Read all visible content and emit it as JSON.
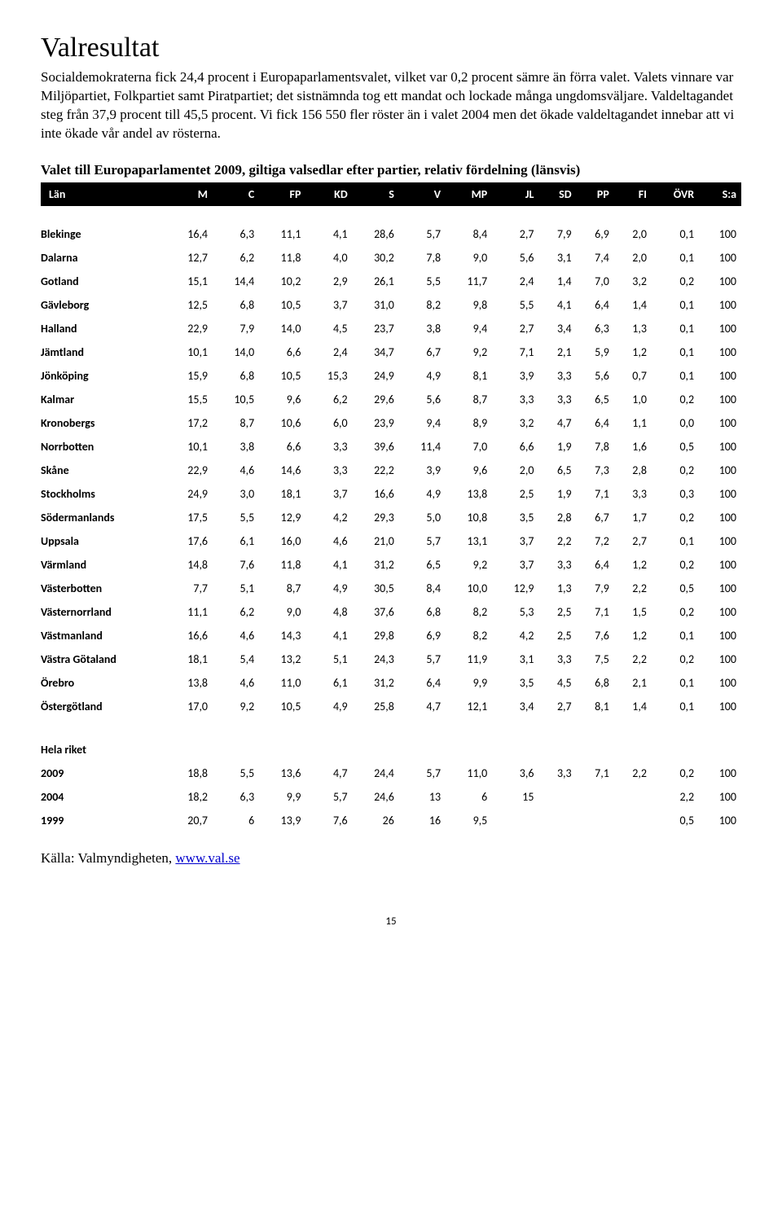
{
  "title": "Valresultat",
  "body": "Socialdemokraterna fick 24,4 procent i Europaparlamentsvalet, vilket var 0,2 procent sämre än förra valet. Valets vinnare var Miljöpartiet, Folkpartiet samt Piratpartiet; det sistnämnda tog ett mandat och lockade många ungdomsväljare. Valdeltagandet steg från 37,9 procent till 45,5 procent. Vi fick 156 550 fler röster än i valet 2004 men det ökade valdeltagandet innebar att vi inte ökade vår andel av rösterna.",
  "caption": "Valet till Europaparlamentet 2009, giltiga valsedlar efter partier, relativ fördelning (länsvis)",
  "table": {
    "columns": [
      "Län",
      "M",
      "C",
      "FP",
      "KD",
      "S",
      "V",
      "MP",
      "JL",
      "SD",
      "PP",
      "FI",
      "ÖVR",
      "S:a"
    ],
    "rows": [
      [
        "Blekinge",
        "16,4",
        "6,3",
        "11,1",
        "4,1",
        "28,6",
        "5,7",
        "8,4",
        "2,7",
        "7,9",
        "6,9",
        "2,0",
        "0,1",
        "100"
      ],
      [
        "Dalarna",
        "12,7",
        "6,2",
        "11,8",
        "4,0",
        "30,2",
        "7,8",
        "9,0",
        "5,6",
        "3,1",
        "7,4",
        "2,0",
        "0,1",
        "100"
      ],
      [
        "Gotland",
        "15,1",
        "14,4",
        "10,2",
        "2,9",
        "26,1",
        "5,5",
        "11,7",
        "2,4",
        "1,4",
        "7,0",
        "3,2",
        "0,2",
        "100"
      ],
      [
        "Gävleborg",
        "12,5",
        "6,8",
        "10,5",
        "3,7",
        "31,0",
        "8,2",
        "9,8",
        "5,5",
        "4,1",
        "6,4",
        "1,4",
        "0,1",
        "100"
      ],
      [
        "Halland",
        "22,9",
        "7,9",
        "14,0",
        "4,5",
        "23,7",
        "3,8",
        "9,4",
        "2,7",
        "3,4",
        "6,3",
        "1,3",
        "0,1",
        "100"
      ],
      [
        "Jämtland",
        "10,1",
        "14,0",
        "6,6",
        "2,4",
        "34,7",
        "6,7",
        "9,2",
        "7,1",
        "2,1",
        "5,9",
        "1,2",
        "0,1",
        "100"
      ],
      [
        "Jönköping",
        "15,9",
        "6,8",
        "10,5",
        "15,3",
        "24,9",
        "4,9",
        "8,1",
        "3,9",
        "3,3",
        "5,6",
        "0,7",
        "0,1",
        "100"
      ],
      [
        "Kalmar",
        "15,5",
        "10,5",
        "9,6",
        "6,2",
        "29,6",
        "5,6",
        "8,7",
        "3,3",
        "3,3",
        "6,5",
        "1,0",
        "0,2",
        "100"
      ],
      [
        "Kronobergs",
        "17,2",
        "8,7",
        "10,6",
        "6,0",
        "23,9",
        "9,4",
        "8,9",
        "3,2",
        "4,7",
        "6,4",
        "1,1",
        "0,0",
        "100"
      ],
      [
        "Norrbotten",
        "10,1",
        "3,8",
        "6,6",
        "3,3",
        "39,6",
        "11,4",
        "7,0",
        "6,6",
        "1,9",
        "7,8",
        "1,6",
        "0,5",
        "100"
      ],
      [
        "Skåne",
        "22,9",
        "4,6",
        "14,6",
        "3,3",
        "22,2",
        "3,9",
        "9,6",
        "2,0",
        "6,5",
        "7,3",
        "2,8",
        "0,2",
        "100"
      ],
      [
        "Stockholms",
        "24,9",
        "3,0",
        "18,1",
        "3,7",
        "16,6",
        "4,9",
        "13,8",
        "2,5",
        "1,9",
        "7,1",
        "3,3",
        "0,3",
        "100"
      ],
      [
        "Södermanlands",
        "17,5",
        "5,5",
        "12,9",
        "4,2",
        "29,3",
        "5,0",
        "10,8",
        "3,5",
        "2,8",
        "6,7",
        "1,7",
        "0,2",
        "100"
      ],
      [
        "Uppsala",
        "17,6",
        "6,1",
        "16,0",
        "4,6",
        "21,0",
        "5,7",
        "13,1",
        "3,7",
        "2,2",
        "7,2",
        "2,7",
        "0,1",
        "100"
      ],
      [
        "Värmland",
        "14,8",
        "7,6",
        "11,8",
        "4,1",
        "31,2",
        "6,5",
        "9,2",
        "3,7",
        "3,3",
        "6,4",
        "1,2",
        "0,2",
        "100"
      ],
      [
        "Västerbotten",
        "7,7",
        "5,1",
        "8,7",
        "4,9",
        "30,5",
        "8,4",
        "10,0",
        "12,9",
        "1,3",
        "7,9",
        "2,2",
        "0,5",
        "100"
      ],
      [
        "Västernorrland",
        "11,1",
        "6,2",
        "9,0",
        "4,8",
        "37,6",
        "6,8",
        "8,2",
        "5,3",
        "2,5",
        "7,1",
        "1,5",
        "0,2",
        "100"
      ],
      [
        "Västmanland",
        "16,6",
        "4,6",
        "14,3",
        "4,1",
        "29,8",
        "6,9",
        "8,2",
        "4,2",
        "2,5",
        "7,6",
        "1,2",
        "0,1",
        "100"
      ],
      [
        "Västra Götaland",
        "18,1",
        "5,4",
        "13,2",
        "5,1",
        "24,3",
        "5,7",
        "11,9",
        "3,1",
        "3,3",
        "7,5",
        "2,2",
        "0,2",
        "100"
      ],
      [
        "Örebro",
        "13,8",
        "4,6",
        "11,0",
        "6,1",
        "31,2",
        "6,4",
        "9,9",
        "3,5",
        "4,5",
        "6,8",
        "2,1",
        "0,1",
        "100"
      ],
      [
        "Östergötland",
        "17,0",
        "9,2",
        "10,5",
        "4,9",
        "25,8",
        "4,7",
        "12,1",
        "3,4",
        "2,7",
        "8,1",
        "1,4",
        "0,1",
        "100"
      ]
    ],
    "section_label": "Hela riket",
    "summary_rows": [
      [
        "2009",
        "18,8",
        "5,5",
        "13,6",
        "4,7",
        "24,4",
        "5,7",
        "11,0",
        "3,6",
        "3,3",
        "7,1",
        "2,2",
        "0,2",
        "100"
      ],
      [
        "2004",
        "18,2",
        "6,3",
        "9,9",
        "5,7",
        "24,6",
        "13",
        "6",
        "15",
        "",
        "",
        "",
        "2,2",
        "100"
      ],
      [
        "1999",
        "20,7",
        "6",
        "13,9",
        "7,6",
        "26",
        "16",
        "9,5",
        "",
        "",
        "",
        "",
        "0,5",
        "100"
      ]
    ]
  },
  "source_prefix": "Källa: Valmyndigheten, ",
  "source_link": "www.val.se",
  "page_number": "15"
}
